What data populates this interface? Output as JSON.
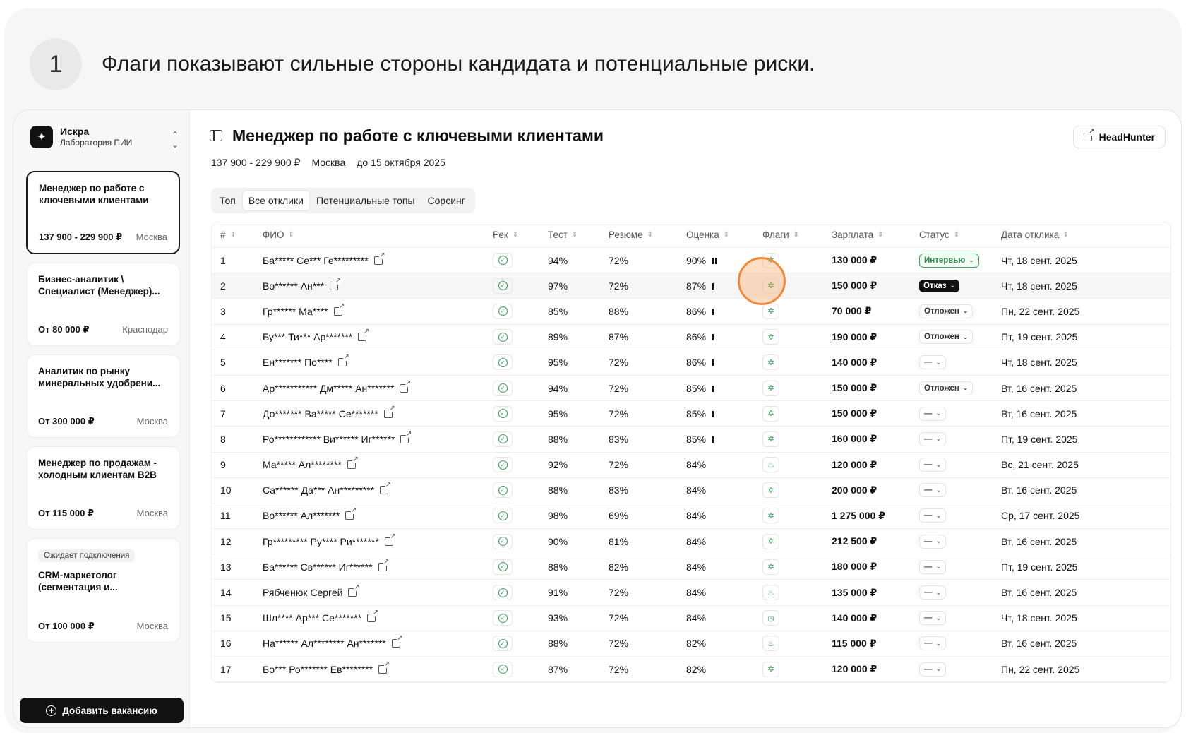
{
  "step": {
    "number": "1",
    "headline": "Флаги показывают сильные стороны кандидата и потенциальные риски."
  },
  "sidebar": {
    "org": {
      "name": "Искра",
      "subtitle": "Лаборатория ПИИ"
    },
    "vacancies": [
      {
        "title": "Менеджер по работе с ключевыми клиентами",
        "salary": "137 900 - 229 900 ₽",
        "city": "Москва",
        "active": true
      },
      {
        "title": "Бизнес-аналитик \\ Специалист (Менеджер)...",
        "salary": "От 80 000 ₽",
        "city": "Краснодар"
      },
      {
        "title": "Аналитик по рынку минеральных удобрени...",
        "salary": "От 300 000 ₽",
        "city": "Москва"
      },
      {
        "title": "Менеджер по продажам - холодным клиентам B2B",
        "salary": "От 115 000 ₽",
        "city": "Москва"
      },
      {
        "badge": "Ожидает подключения",
        "title": "CRM-маркетолог (сегментация и...",
        "salary": "От 100 000 ₽",
        "city": "Москва"
      }
    ],
    "add_button": "Добавить вакансию"
  },
  "main": {
    "title": "Менеджер по работе с ключевыми клиентами",
    "source_button": "HeadHunter",
    "meta": {
      "salary": "137 900 - 229 900 ₽",
      "city": "Москва",
      "deadline": "до 15 октября 2025"
    },
    "tabs": [
      "Топ",
      "Все отклики",
      "Потенциальные топы",
      "Сорсинг"
    ],
    "active_tab": 1
  },
  "table": {
    "headers": [
      "#",
      "ФИО",
      "Рек",
      "Тест",
      "Резюме",
      "Оценка",
      "Флаги",
      "Зарплата",
      "Статус",
      "Дата отклика"
    ],
    "rows": [
      {
        "n": "1",
        "name": "Ба***** Се*** Ге*********",
        "test": "94%",
        "resume": "72%",
        "score": "90%",
        "bars": 2,
        "salary": "130 000 ₽",
        "status": "Интервью",
        "st": "int",
        "date": "Чт, 18 сент. 2025",
        "flag": "✲"
      },
      {
        "n": "2",
        "name": "Во****** Ан***",
        "test": "97%",
        "resume": "72%",
        "score": "87%",
        "bars": 1,
        "salary": "150 000 ₽",
        "status": "Отказ",
        "st": "rej",
        "date": "Чт, 18 сент. 2025",
        "flag": "✲"
      },
      {
        "n": "3",
        "name": "Гр****** Ма****",
        "test": "85%",
        "resume": "88%",
        "score": "86%",
        "bars": 1,
        "salary": "70 000 ₽",
        "status": "Отложен",
        "st": "post",
        "date": "Пн, 22 сент. 2025",
        "flag": "✲"
      },
      {
        "n": "4",
        "name": "Бу*** Ти*** Ар*******",
        "test": "89%",
        "resume": "87%",
        "score": "86%",
        "bars": 1,
        "salary": "190 000 ₽",
        "status": "Отложен",
        "st": "post",
        "date": "Пт, 19 сент. 2025",
        "flag": "✲"
      },
      {
        "n": "5",
        "name": "Ен******* По****",
        "test": "95%",
        "resume": "72%",
        "score": "86%",
        "bars": 1,
        "salary": "140 000 ₽",
        "status": "—",
        "st": "none",
        "date": "Чт, 18 сент. 2025",
        "flag": "✲"
      },
      {
        "n": "6",
        "name": "Ар*********** Дм***** Ан*******",
        "test": "94%",
        "resume": "72%",
        "score": "85%",
        "bars": 1,
        "salary": "150 000 ₽",
        "status": "Отложен",
        "st": "post",
        "date": "Вт, 16 сент. 2025",
        "flag": "✲"
      },
      {
        "n": "7",
        "name": "До******* Ва***** Се*******",
        "test": "95%",
        "resume": "72%",
        "score": "85%",
        "bars": 1,
        "salary": "150 000 ₽",
        "status": "—",
        "st": "none",
        "date": "Вт, 16 сент. 2025",
        "flag": "✲"
      },
      {
        "n": "8",
        "name": "Ро************ Ви****** Иг******",
        "test": "88%",
        "resume": "83%",
        "score": "85%",
        "bars": 1,
        "salary": "160 000 ₽",
        "status": "—",
        "st": "none",
        "date": "Пт, 19 сент. 2025",
        "flag": "✲"
      },
      {
        "n": "9",
        "name": "Ма***** Ал********",
        "test": "92%",
        "resume": "72%",
        "score": "84%",
        "bars": 0,
        "salary": "120 000 ₽",
        "status": "—",
        "st": "none",
        "date": "Вс, 21 сент. 2025",
        "flag": "♨"
      },
      {
        "n": "10",
        "name": "Са****** Да*** Ан*********",
        "test": "88%",
        "resume": "83%",
        "score": "84%",
        "bars": 0,
        "salary": "200 000 ₽",
        "status": "—",
        "st": "none",
        "date": "Вт, 16 сент. 2025",
        "flag": "✲"
      },
      {
        "n": "11",
        "name": "Во****** Ал*******",
        "test": "98%",
        "resume": "69%",
        "score": "84%",
        "bars": 0,
        "salary": "1 275 000 ₽",
        "status": "—",
        "st": "none",
        "date": "Ср, 17 сент. 2025",
        "flag": "✲"
      },
      {
        "n": "12",
        "name": "Гр********* Ру**** Ри*******",
        "test": "90%",
        "resume": "81%",
        "score": "84%",
        "bars": 0,
        "salary": "212 500 ₽",
        "status": "—",
        "st": "none",
        "date": "Вт, 16 сент. 2025",
        "flag": "✲"
      },
      {
        "n": "13",
        "name": "Ба****** Св****** Иг******",
        "test": "88%",
        "resume": "82%",
        "score": "84%",
        "bars": 0,
        "salary": "180 000 ₽",
        "status": "—",
        "st": "none",
        "date": "Пт, 19 сент. 2025",
        "flag": "✲"
      },
      {
        "n": "14",
        "name": "Рябченюк Сергей",
        "test": "91%",
        "resume": "72%",
        "score": "84%",
        "bars": 0,
        "salary": "135 000 ₽",
        "status": "—",
        "st": "none",
        "date": "Вт, 16 сент. 2025",
        "flag": "♨"
      },
      {
        "n": "15",
        "name": "Шл**** Ар*** Се*******",
        "test": "93%",
        "resume": "72%",
        "score": "84%",
        "bars": 0,
        "salary": "140 000 ₽",
        "status": "—",
        "st": "none",
        "date": "Чт, 18 сент. 2025",
        "flag": "◷"
      },
      {
        "n": "16",
        "name": "На****** Ал******** Ан*******",
        "test": "88%",
        "resume": "72%",
        "score": "82%",
        "bars": 0,
        "salary": "115 000 ₽",
        "status": "—",
        "st": "none",
        "date": "Вт, 16 сент. 2025",
        "flag": "♨"
      },
      {
        "n": "17",
        "name": "Бо*** Ро******* Ев********",
        "test": "87%",
        "resume": "72%",
        "score": "82%",
        "bars": 0,
        "salary": "120 000 ₽",
        "status": "—",
        "st": "none",
        "date": "Пн, 22 сент. 2025",
        "flag": "✲"
      }
    ]
  },
  "colors": {
    "accent_green": "#2e9e57",
    "highlight_orange": "#f0893b",
    "dark": "#111111"
  }
}
